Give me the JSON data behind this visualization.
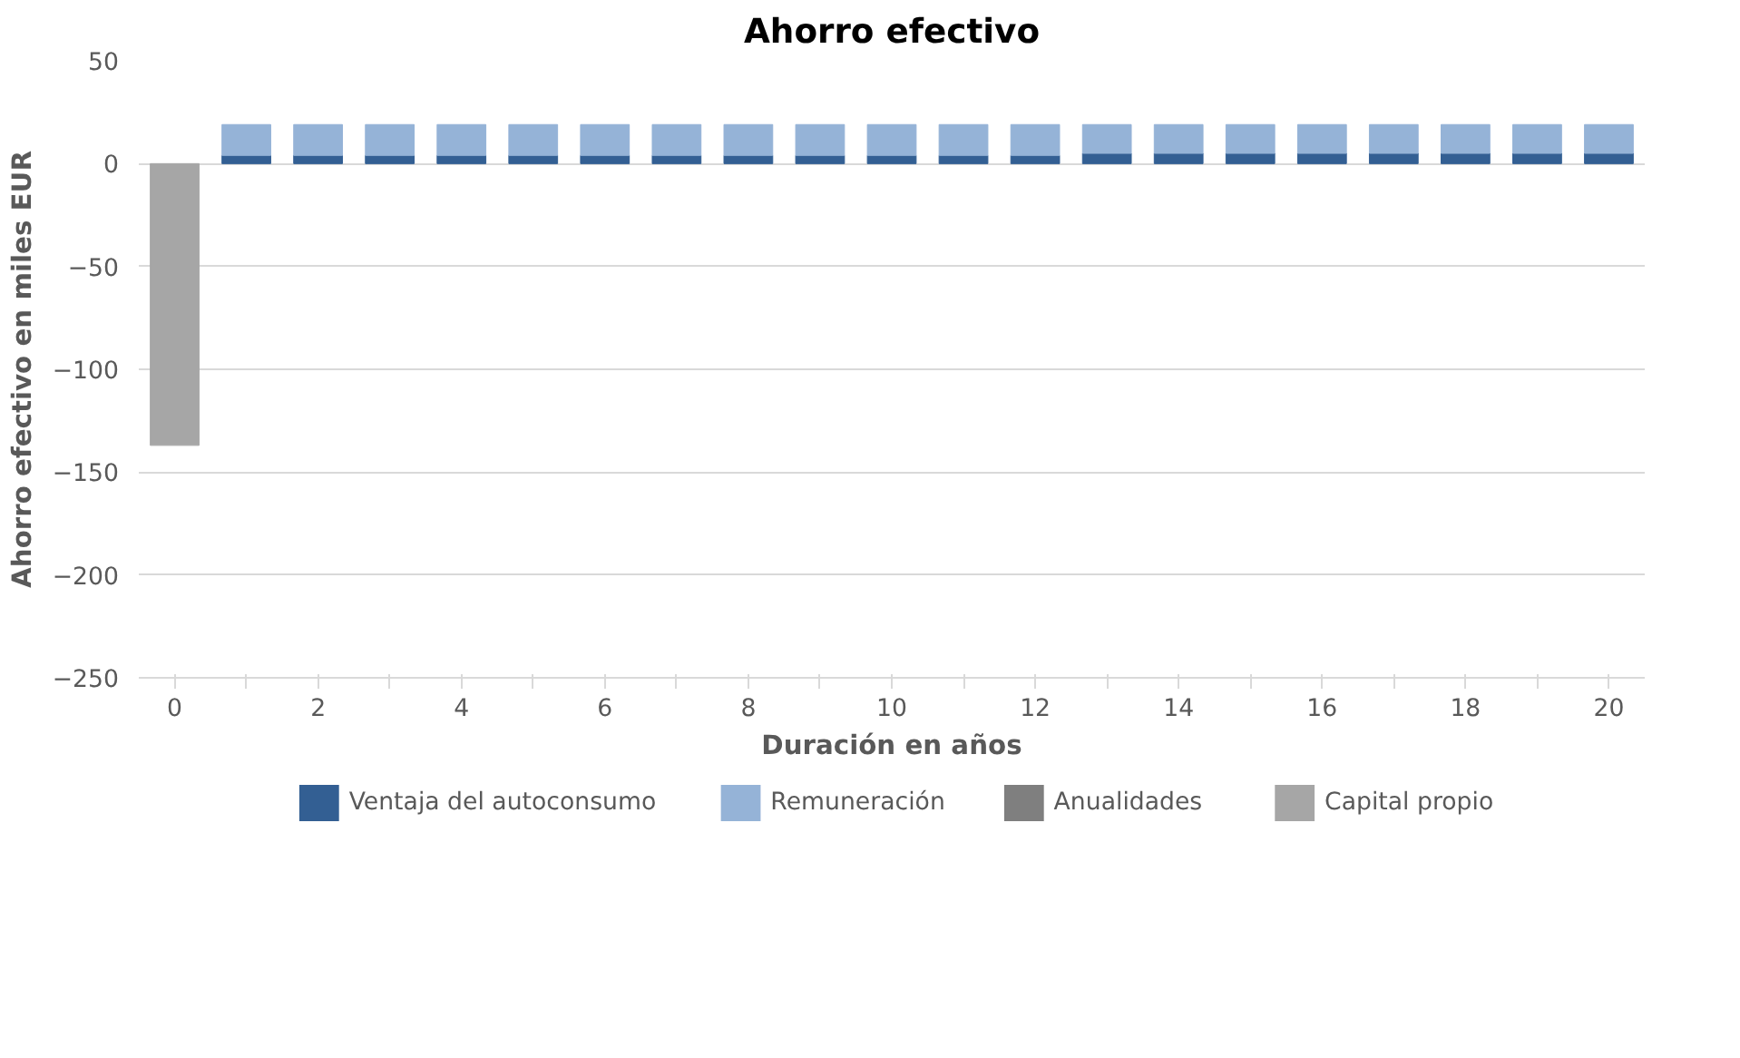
{
  "chart_data": {
    "type": "bar",
    "stacked": true,
    "title": "Ahorro efectivo",
    "xlabel": "Duración en años",
    "ylabel": "Ahorro efectivo en miles EUR",
    "categories": [
      "0",
      null,
      "2",
      null,
      "4",
      null,
      "6",
      null,
      "8",
      null,
      "10",
      null,
      "12",
      null,
      "14",
      null,
      "16",
      null,
      "18",
      null,
      "20"
    ],
    "series": [
      {
        "name": "Ventaja del autoconsumo",
        "color": "#335f93",
        "values": [
          null,
          4,
          4,
          4,
          4,
          4,
          4,
          4,
          4,
          4,
          4,
          4,
          4,
          5,
          5,
          5,
          5,
          5,
          5,
          5,
          5
        ]
      },
      {
        "name": "Remuneración",
        "color": "#95b3d7",
        "values": [
          null,
          15,
          15,
          15,
          15,
          15,
          15,
          15,
          15,
          15,
          15,
          15,
          15,
          14,
          14,
          14,
          14,
          14,
          14,
          14,
          14
        ]
      },
      {
        "name": "Anualidades",
        "color": "#7f7f7f",
        "values": [
          null,
          null,
          null,
          null,
          null,
          null,
          null,
          null,
          null,
          null,
          null,
          null,
          null,
          null,
          null,
          null,
          null,
          null,
          null,
          null,
          null
        ]
      },
      {
        "name": "Capital propio",
        "color": "#a6a6a6",
        "values": [
          -137,
          null,
          null,
          null,
          null,
          null,
          null,
          null,
          null,
          null,
          null,
          null,
          null,
          null,
          null,
          null,
          null,
          null,
          null,
          null,
          null
        ]
      }
    ],
    "ylim": [
      -250,
      50
    ],
    "yticks": [
      -250,
      -200,
      -150,
      -100,
      -50,
      0,
      50
    ],
    "grid": "y",
    "legend": "bottom"
  }
}
